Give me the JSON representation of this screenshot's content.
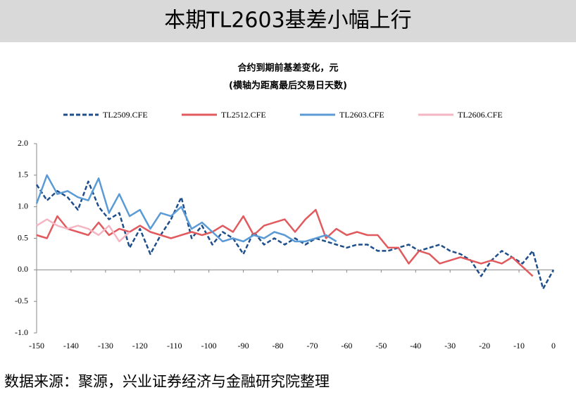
{
  "header": {
    "title": "本期TL2603基差小幅上行"
  },
  "chart_data": {
    "type": "line",
    "title": "合约到期前基差变化，元",
    "subtitle": "(横轴为距离最后交易日天数)",
    "x": [
      -150,
      -147,
      -144,
      -141,
      -138,
      -135,
      -132,
      -129,
      -126,
      -123,
      -120,
      -117,
      -114,
      -111,
      -108,
      -105,
      -102,
      -99,
      -96,
      -93,
      -90,
      -87,
      -84,
      -81,
      -78,
      -75,
      -72,
      -69,
      -66,
      -63,
      -60,
      -57,
      -54,
      -51,
      -48,
      -45,
      -42,
      -39,
      -36,
      -33,
      -30,
      -27,
      -24,
      -21,
      -18,
      -15,
      -12,
      -9,
      -6,
      -3,
      0
    ],
    "series": [
      {
        "name": "TL2509.CFE",
        "color": "#1f4e8c",
        "dash": true,
        "values": [
          1.35,
          1.1,
          1.25,
          1.15,
          0.95,
          1.4,
          1.0,
          0.8,
          0.9,
          0.35,
          0.65,
          0.25,
          0.55,
          0.8,
          1.15,
          0.5,
          0.7,
          0.4,
          0.6,
          0.5,
          0.25,
          0.6,
          0.4,
          0.5,
          0.4,
          0.5,
          0.4,
          0.5,
          0.45,
          0.4,
          0.35,
          0.4,
          0.4,
          0.3,
          0.3,
          0.35,
          0.4,
          0.3,
          0.35,
          0.4,
          0.3,
          0.25,
          0.15,
          -0.1,
          0.15,
          0.3,
          0.2,
          0.1,
          0.3,
          -0.3,
          0.0
        ]
      },
      {
        "name": "TL2512.CFE",
        "color": "#e05a5e",
        "dash": false,
        "values": [
          0.55,
          0.5,
          0.85,
          0.65,
          0.6,
          0.55,
          0.75,
          0.55,
          0.65,
          0.6,
          0.7,
          0.6,
          0.55,
          0.5,
          0.55,
          0.6,
          0.55,
          0.6,
          0.7,
          0.6,
          0.85,
          0.55,
          0.7,
          0.75,
          0.8,
          0.6,
          0.8,
          0.95,
          0.5,
          0.65,
          0.55,
          0.6,
          0.55,
          0.55,
          0.35,
          0.35,
          0.1,
          0.3,
          0.25,
          0.1,
          0.15,
          0.2,
          0.15,
          0.1,
          0.15,
          0.1,
          0.2,
          0.05,
          -0.1,
          null,
          null
        ]
      },
      {
        "name": "TL2603.CFE",
        "color": "#5b9bd5",
        "dash": false,
        "values": [
          1.05,
          1.5,
          1.2,
          1.25,
          1.15,
          1.1,
          1.45,
          0.9,
          1.2,
          0.85,
          0.95,
          0.65,
          0.9,
          0.85,
          1.0,
          0.65,
          0.75,
          0.6,
          0.45,
          0.5,
          0.45,
          0.55,
          0.5,
          0.6,
          0.55,
          0.45,
          0.45,
          0.5,
          0.55,
          0.45,
          null,
          null,
          null,
          null,
          null,
          null,
          null,
          null,
          null,
          null,
          null,
          null,
          null,
          null,
          null,
          null,
          null,
          null,
          null,
          null,
          null
        ]
      },
      {
        "name": "TL2606.CFE",
        "color": "#f4b6c2",
        "dash": false,
        "values": [
          0.7,
          0.8,
          0.7,
          0.65,
          0.7,
          0.65,
          0.55,
          0.7,
          0.45,
          0.6,
          null,
          null,
          null,
          null,
          null,
          null,
          null,
          null,
          null,
          null,
          null,
          null,
          null,
          null,
          null,
          null,
          null,
          null,
          null,
          null,
          null,
          null,
          null,
          null,
          null,
          null,
          null,
          null,
          null,
          null,
          null,
          null,
          null,
          null,
          null,
          null,
          null,
          null,
          null,
          null,
          null
        ]
      }
    ],
    "xlim": [
      -150,
      0
    ],
    "xticks": [
      -150,
      -140,
      -130,
      -120,
      -110,
      -100,
      -90,
      -80,
      -70,
      -60,
      -50,
      -40,
      -30,
      -20,
      -10,
      0
    ],
    "ylim": [
      -1,
      2
    ],
    "yticks": [
      {
        "value": -1,
        "label": "-1.0"
      },
      {
        "value": -0.5,
        "label": "-0.5"
      },
      {
        "value": 0,
        "label": "0.0"
      },
      {
        "value": 0.5,
        "label": "0.5"
      },
      {
        "value": 1,
        "label": "1.0"
      },
      {
        "value": 1.5,
        "label": "1.5"
      },
      {
        "value": 2,
        "label": "2.0"
      }
    ]
  },
  "footer": {
    "source": "数据来源：聚源，兴业证券经济与金融研究院整理"
  }
}
